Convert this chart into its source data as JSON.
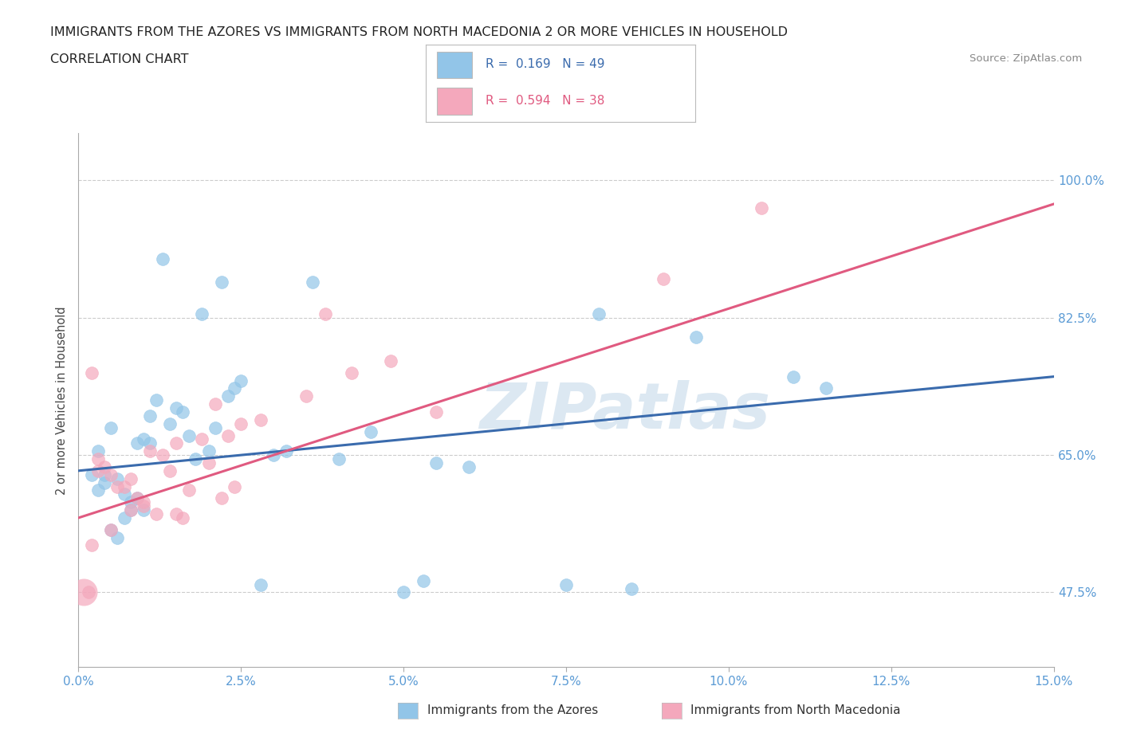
{
  "title_line1": "IMMIGRANTS FROM THE AZORES VS IMMIGRANTS FROM NORTH MACEDONIA 2 OR MORE VEHICLES IN HOUSEHOLD",
  "title_line2": "CORRELATION CHART",
  "source_text": "Source: ZipAtlas.com",
  "xlabel_ticks": [
    "0.0%",
    "2.5%",
    "5.0%",
    "7.5%",
    "10.0%",
    "12.5%",
    "15.0%"
  ],
  "ylabel_ticks": [
    "47.5%",
    "65.0%",
    "82.5%",
    "100.0%"
  ],
  "xlabel_values": [
    0.0,
    2.5,
    5.0,
    7.5,
    10.0,
    12.5,
    15.0
  ],
  "ylabel_values": [
    47.5,
    65.0,
    82.5,
    100.0
  ],
  "xlim": [
    0.0,
    15.0
  ],
  "ylim": [
    38.0,
    106.0
  ],
  "blue_color": "#92C5E8",
  "pink_color": "#F4A8BC",
  "line_blue": "#3A6BAD",
  "line_pink": "#E05A80",
  "blue_line_y0": 63.0,
  "blue_line_y1": 75.0,
  "pink_line_y0": 57.0,
  "pink_line_y1": 97.0,
  "blue_scatter_x": [
    1.3,
    2.2,
    1.9,
    3.6,
    0.3,
    0.5,
    0.4,
    0.6,
    0.7,
    0.8,
    0.9,
    1.0,
    1.1,
    1.2,
    1.4,
    1.5,
    1.6,
    1.7,
    1.8,
    2.0,
    2.1,
    2.3,
    2.4,
    2.5,
    0.2,
    0.3,
    0.4,
    0.5,
    0.6,
    0.7,
    0.8,
    0.9,
    1.0,
    1.1,
    3.2,
    4.5,
    5.0,
    7.5,
    8.5,
    9.5,
    5.5,
    6.0,
    3.0,
    2.8,
    4.0,
    5.3,
    8.0,
    11.0,
    11.5
  ],
  "blue_scatter_y": [
    90.0,
    87.0,
    83.0,
    87.0,
    65.5,
    68.5,
    62.5,
    62.0,
    60.0,
    58.0,
    66.5,
    67.0,
    70.0,
    72.0,
    69.0,
    71.0,
    70.5,
    67.5,
    64.5,
    65.5,
    68.5,
    72.5,
    73.5,
    74.5,
    62.5,
    60.5,
    61.5,
    55.5,
    54.5,
    57.0,
    59.0,
    59.5,
    58.0,
    66.5,
    65.5,
    68.0,
    47.5,
    48.5,
    48.0,
    80.0,
    64.0,
    63.5,
    65.0,
    48.5,
    64.5,
    49.0,
    83.0,
    75.0,
    73.5
  ],
  "pink_scatter_x": [
    0.2,
    0.3,
    0.5,
    0.7,
    0.8,
    1.0,
    1.2,
    1.4,
    1.6,
    0.4,
    0.6,
    0.9,
    1.1,
    1.3,
    1.5,
    1.7,
    1.9,
    2.1,
    2.3,
    2.5,
    2.8,
    3.5,
    4.2,
    4.8,
    5.5,
    0.3,
    0.5,
    0.8,
    1.0,
    1.5,
    2.0,
    2.2,
    2.4,
    9.0,
    10.5,
    3.8,
    0.2,
    0.15
  ],
  "pink_scatter_y": [
    75.5,
    64.5,
    62.5,
    61.0,
    62.0,
    58.5,
    57.5,
    63.0,
    57.0,
    63.5,
    61.0,
    59.5,
    65.5,
    65.0,
    66.5,
    60.5,
    67.0,
    71.5,
    67.5,
    69.0,
    69.5,
    72.5,
    75.5,
    77.0,
    70.5,
    63.0,
    55.5,
    58.0,
    59.0,
    57.5,
    64.0,
    59.5,
    61.0,
    87.5,
    96.5,
    83.0,
    53.5,
    47.5
  ],
  "pink_large_x": 0.08,
  "pink_large_y": 47.5,
  "pink_large_size": 600,
  "grid_color": "#CCCCCC",
  "background_color": "#FFFFFF",
  "watermark_color": "#DCE8F2",
  "axis_color": "#AAAAAA",
  "tick_color": "#5B9BD5"
}
